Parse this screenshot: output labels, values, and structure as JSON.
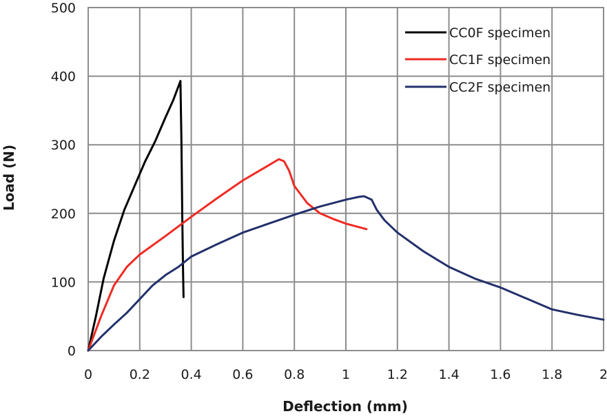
{
  "chart_data": {
    "type": "line",
    "title": "",
    "xlabel": "Deflection (mm)",
    "ylabel": "Load (N)",
    "xlim": [
      0,
      2
    ],
    "ylim": [
      0,
      500
    ],
    "xticks": [
      0,
      0.2,
      0.4,
      0.6,
      0.8,
      1.0,
      1.2,
      1.4,
      1.6,
      1.8,
      2.0
    ],
    "xtick_labels": [
      "0",
      "0.2",
      "0.4",
      "0.6",
      "0.8",
      "1",
      "1.2",
      "1.4",
      "1.6",
      "1.8",
      "2"
    ],
    "yticks": [
      0,
      100,
      200,
      300,
      400,
      500
    ],
    "ytick_labels": [
      "0",
      "100",
      "200",
      "300",
      "400",
      "500"
    ],
    "grid": true,
    "legend_position": "top-right",
    "series": [
      {
        "name": "CC0F specimen",
        "color": "#000000",
        "x": [
          0,
          0.03,
          0.06,
          0.1,
          0.14,
          0.18,
          0.22,
          0.26,
          0.3,
          0.33,
          0.358,
          0.362,
          0.365,
          0.368,
          0.37
        ],
        "y": [
          0,
          50,
          105,
          160,
          205,
          240,
          275,
          305,
          340,
          365,
          393,
          300,
          200,
          120,
          78
        ]
      },
      {
        "name": "CC1F specimen",
        "color": "#ee2b24",
        "x": [
          0,
          0.05,
          0.1,
          0.15,
          0.2,
          0.3,
          0.4,
          0.5,
          0.6,
          0.7,
          0.74,
          0.76,
          0.78,
          0.8,
          0.85,
          0.9,
          0.95,
          1.0,
          1.05,
          1.08
        ],
        "y": [
          0,
          50,
          95,
          122,
          140,
          167,
          195,
          222,
          248,
          270,
          279,
          276,
          262,
          240,
          215,
          200,
          192,
          185,
          180,
          177
        ]
      },
      {
        "name": "CC2F specimen",
        "color": "#22306b",
        "x": [
          0,
          0.05,
          0.1,
          0.15,
          0.2,
          0.25,
          0.3,
          0.35,
          0.4,
          0.5,
          0.6,
          0.7,
          0.8,
          0.9,
          1.0,
          1.05,
          1.07,
          1.1,
          1.12,
          1.15,
          1.2,
          1.3,
          1.4,
          1.5,
          1.6,
          1.7,
          1.8,
          1.9,
          2.0
        ],
        "y": [
          0,
          20,
          38,
          55,
          75,
          95,
          110,
          122,
          137,
          155,
          172,
          185,
          198,
          210,
          220,
          224,
          225,
          220,
          205,
          190,
          172,
          145,
          122,
          105,
          92,
          76,
          60,
          52,
          45
        ]
      }
    ]
  }
}
